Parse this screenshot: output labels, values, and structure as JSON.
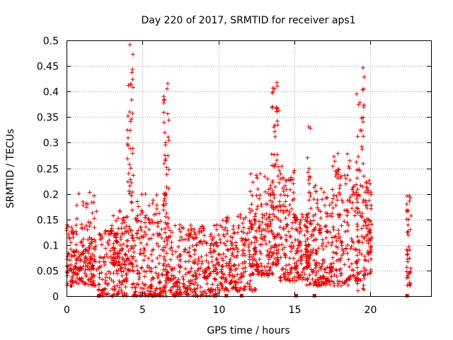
{
  "chart_data": {
    "type": "scatter",
    "title": "Day 220 of 2017, SRMTID for receiver aps1",
    "xlabel": "GPS time / hours",
    "ylabel": "SRMTID / TECUs",
    "xlim": [
      0,
      24
    ],
    "ylim": [
      0,
      0.5
    ],
    "xticks": [
      0,
      5,
      10,
      15,
      20
    ],
    "xtick_labels": [
      "0",
      "5",
      "10",
      "15",
      "20"
    ],
    "yticks": [
      0,
      0.05,
      0.1,
      0.15,
      0.2,
      0.25,
      0.3,
      0.35,
      0.4,
      0.45,
      0.5
    ],
    "ytick_labels": [
      "0",
      "0.05",
      "0.1",
      "0.15",
      "0.2",
      "0.25",
      "0.3",
      "0.35",
      "0.4",
      "0.45",
      "0.5"
    ],
    "grid": true,
    "marker": "+",
    "color": "#e00000",
    "series": [
      {
        "name": "SRMTID",
        "description": "dense cloud of points, approximated by clusters",
        "clusters": [
          {
            "x": [
              0.0,
              1.9
            ],
            "y": [
              0.02,
              0.14
            ],
            "n": 160
          },
          {
            "x": [
              0.6,
              2.0
            ],
            "y": [
              0.05,
              0.22
            ],
            "n": 60
          },
          {
            "x": [
              2.1,
              4.0
            ],
            "y": [
              0.0,
              0.13
            ],
            "n": 160
          },
          {
            "x": [
              2.9,
              4.0
            ],
            "y": [
              0.06,
              0.17
            ],
            "n": 60
          },
          {
            "x": [
              4.0,
              4.4
            ],
            "y": [
              0.05,
              0.5
            ],
            "n": 70
          },
          {
            "x": [
              4.3,
              6.6
            ],
            "y": [
              0.0,
              0.2
            ],
            "n": 220
          },
          {
            "x": [
              6.4,
              6.8
            ],
            "y": [
              0.03,
              0.42
            ],
            "n": 60
          },
          {
            "x": [
              6.8,
              10.0
            ],
            "y": [
              0.0,
              0.14
            ],
            "n": 300
          },
          {
            "x": [
              10.0,
              12.5
            ],
            "y": [
              0.01,
              0.16
            ],
            "n": 220
          },
          {
            "x": [
              12.0,
              13.6
            ],
            "y": [
              0.04,
              0.24
            ],
            "n": 160
          },
          {
            "x": [
              13.5,
              14.0
            ],
            "y": [
              0.06,
              0.42
            ],
            "n": 80
          },
          {
            "x": [
              14.0,
              15.0
            ],
            "y": [
              0.03,
              0.26
            ],
            "n": 110
          },
          {
            "x": [
              15.0,
              16.0
            ],
            "y": [
              0.03,
              0.16
            ],
            "n": 110
          },
          {
            "x": [
              15.8,
              16.1
            ],
            "y": [
              0.02,
              0.34
            ],
            "n": 40
          },
          {
            "x": [
              16.1,
              17.5
            ],
            "y": [
              0.02,
              0.22
            ],
            "n": 150
          },
          {
            "x": [
              17.5,
              19.2
            ],
            "y": [
              0.02,
              0.28
            ],
            "n": 170
          },
          {
            "x": [
              19.1,
              19.6
            ],
            "y": [
              0.01,
              0.47
            ],
            "n": 70
          },
          {
            "x": [
              19.6,
              20.1
            ],
            "y": [
              0.04,
              0.23
            ],
            "n": 70
          },
          {
            "x": [
              22.4,
              22.7
            ],
            "y": [
              0.02,
              0.21
            ],
            "n": 40
          }
        ],
        "zero_points": [
          2.1,
          10.5,
          11.5,
          15.1,
          16.3,
          22.4
        ]
      }
    ]
  }
}
